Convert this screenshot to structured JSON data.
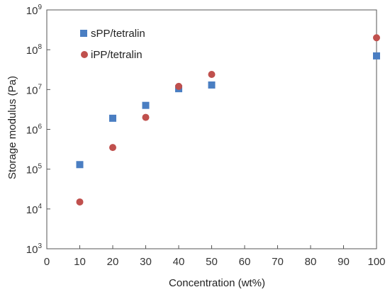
{
  "chart_data": {
    "type": "scatter",
    "title": "",
    "xlabel": "Concentration (wt%)",
    "ylabel": "Storage modulus (Pa)",
    "xlim": [
      0,
      100
    ],
    "ylim": [
      1000,
      1000000000
    ],
    "y_scale": "log",
    "grid": false,
    "legend_position": "top-left",
    "x_ticks": [
      "0",
      "10",
      "20",
      "30",
      "40",
      "50",
      "60",
      "70",
      "80",
      "90",
      "100"
    ],
    "y_ticks": [
      {
        "base": "10",
        "exp": "3"
      },
      {
        "base": "10",
        "exp": "4"
      },
      {
        "base": "10",
        "exp": "5"
      },
      {
        "base": "10",
        "exp": "6"
      },
      {
        "base": "10",
        "exp": "7"
      },
      {
        "base": "10",
        "exp": "8"
      },
      {
        "base": "10",
        "exp": "9"
      }
    ],
    "series": [
      {
        "name": "sPP/tetralin",
        "marker": "square",
        "color": "#4a7ec2",
        "x": [
          10,
          20,
          30,
          40,
          50,
          100
        ],
        "y": [
          130000,
          1900000,
          4000000,
          10500000,
          13000000,
          70000000
        ]
      },
      {
        "name": "iPP/tetralin",
        "marker": "circle",
        "color": "#c0504d",
        "x": [
          10,
          20,
          30,
          40,
          50,
          100
        ],
        "y": [
          15000,
          350000,
          2000000,
          12000000,
          24000000,
          200000000
        ]
      }
    ]
  }
}
